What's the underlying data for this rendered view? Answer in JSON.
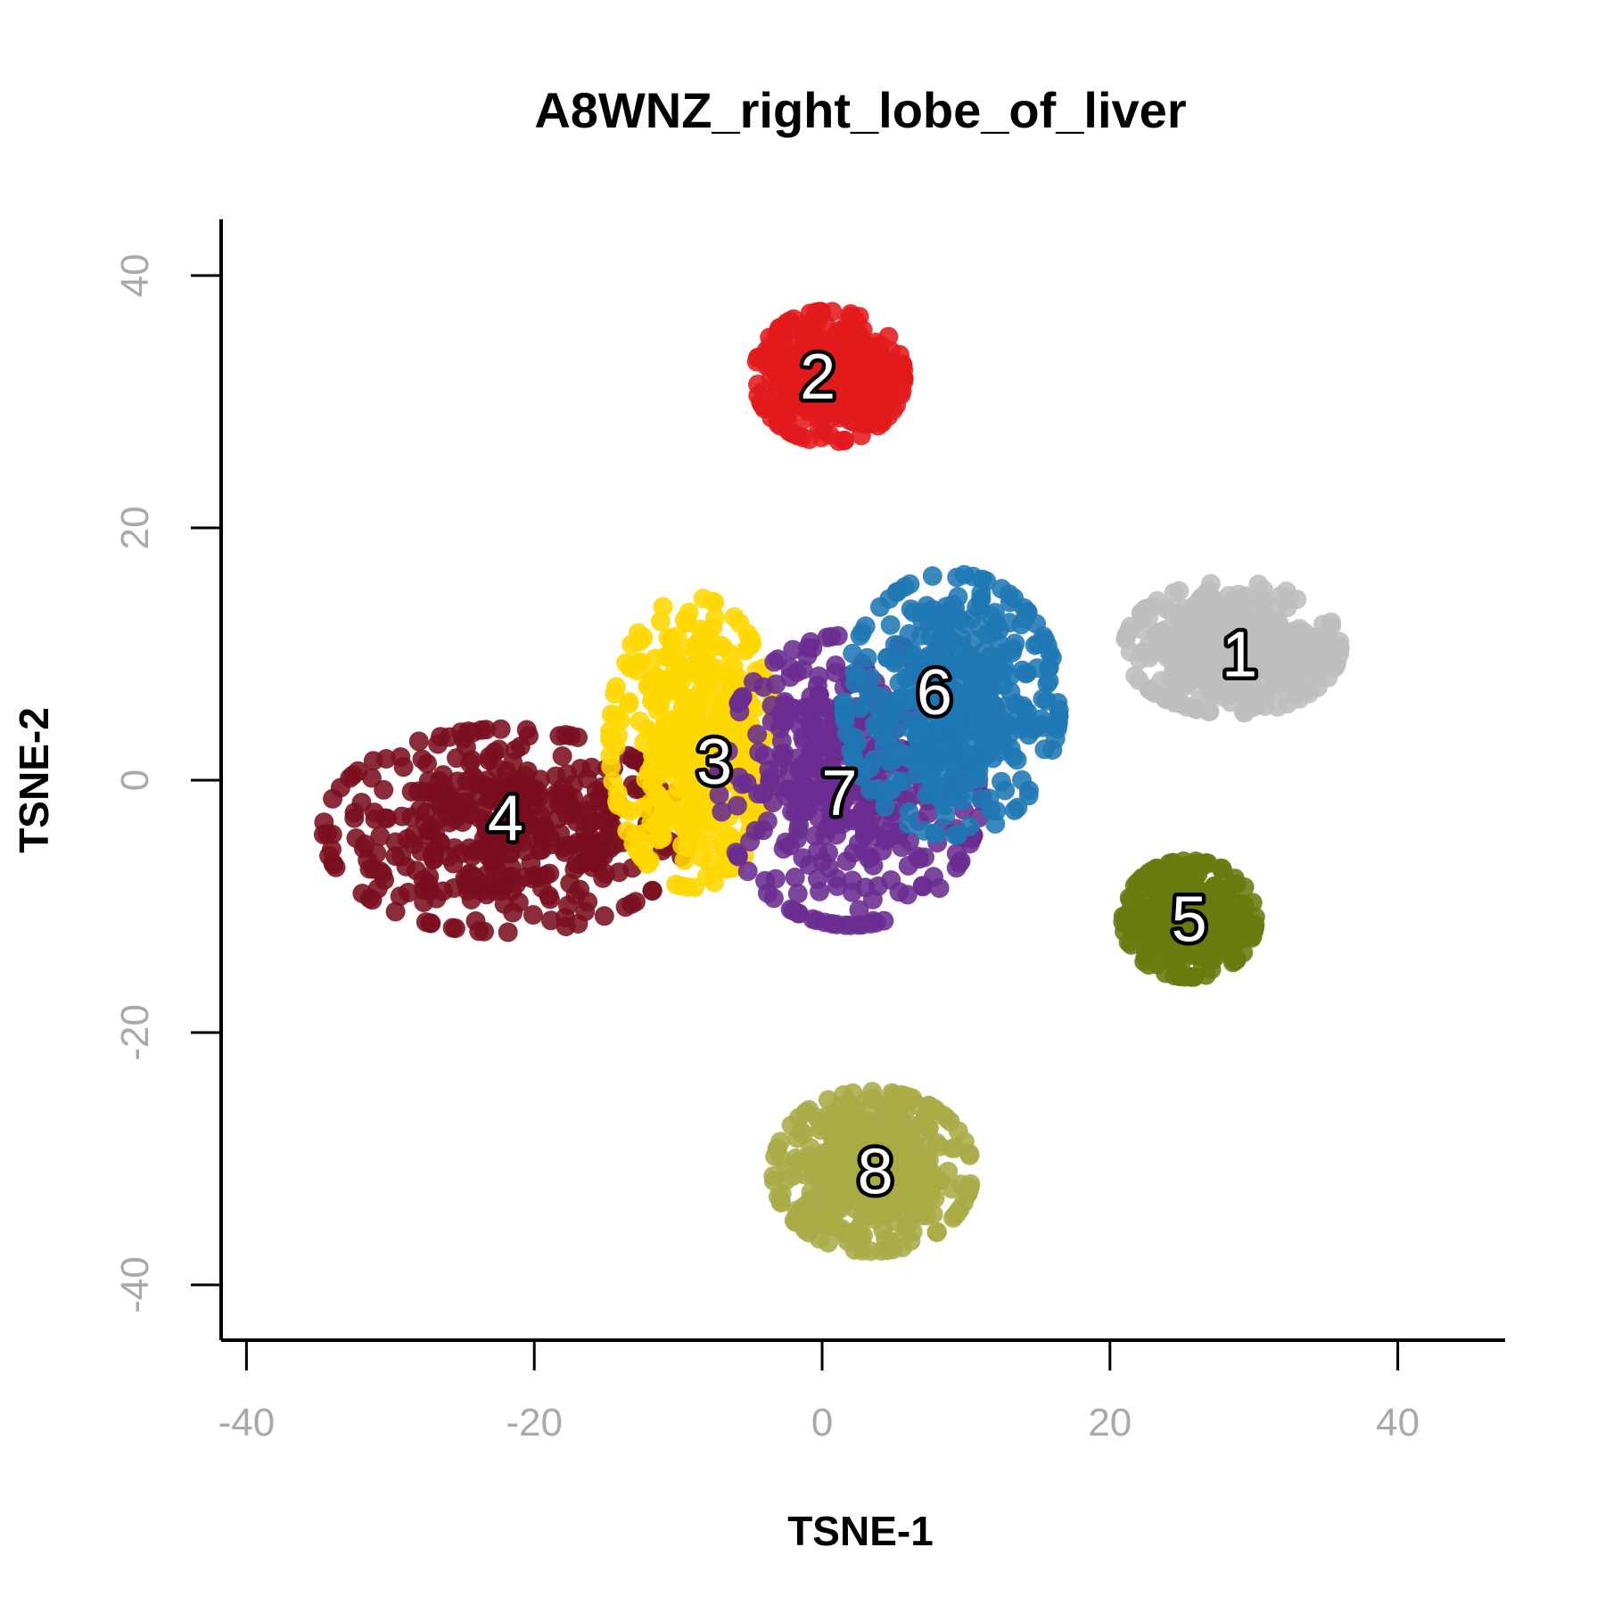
{
  "chart_data": {
    "type": "scatter",
    "title": "A8WNZ_right_lobe_of_liver",
    "xlabel": "TSNE-1",
    "ylabel": "TSNE-2",
    "xlim": [
      -42,
      47
    ],
    "ylim": [
      -44,
      44
    ],
    "x_ticks": [
      -40,
      -20,
      0,
      20,
      40
    ],
    "y_ticks": [
      -40,
      -20,
      0,
      20,
      40
    ],
    "x_tick_labels": [
      "-40",
      "-20",
      "0",
      "20",
      "40"
    ],
    "y_tick_labels": [
      "-40",
      "-20",
      "0",
      "20",
      "40"
    ],
    "grid": false,
    "legend": "none",
    "series": [
      {
        "label": "1",
        "color": "#bebebe",
        "center": [
          28.5,
          10.5
        ],
        "spread": [
          6.5,
          4.5
        ],
        "label_pos": [
          29,
          10
        ]
      },
      {
        "label": "2",
        "color": "#e31a1c",
        "center": [
          0.5,
          32
        ],
        "spread": [
          4.5,
          4.5
        ],
        "label_pos": [
          -0.3,
          32
        ]
      },
      {
        "label": "3",
        "color": "#ffd700",
        "center": [
          -9,
          3
        ],
        "spread": [
          5,
          10
        ],
        "label_pos": [
          -7.5,
          1.5
        ]
      },
      {
        "label": "4",
        "color": "#7a0f1f",
        "center": [
          -22,
          -4
        ],
        "spread": [
          11,
          7
        ],
        "label_pos": [
          -22,
          -3
        ]
      },
      {
        "label": "5",
        "color": "#6b7a0f",
        "center": [
          25.5,
          -11
        ],
        "spread": [
          4,
          4
        ],
        "label_pos": [
          25.5,
          -11
        ]
      },
      {
        "label": "6",
        "color": "#1f78b4",
        "center": [
          9,
          6
        ],
        "spread": [
          6.5,
          9
        ],
        "label_pos": [
          7.8,
          7
        ]
      },
      {
        "label": "7",
        "color": "#6a2c91",
        "center": [
          2,
          0
        ],
        "spread": [
          8,
          10
        ],
        "label_pos": [
          1.2,
          -1
        ]
      },
      {
        "label": "8",
        "color": "#a8ac45",
        "center": [
          3.5,
          -31
        ],
        "spread": [
          6,
          5.5
        ],
        "label_pos": [
          3.7,
          -31
        ]
      }
    ]
  }
}
